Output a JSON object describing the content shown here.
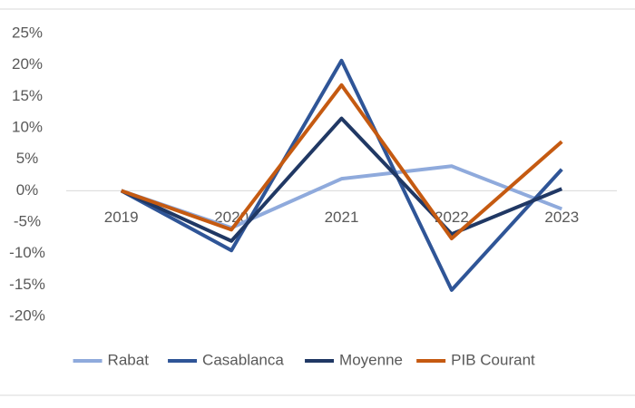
{
  "chart_data": {
    "type": "line",
    "categories": [
      "2019",
      "2020",
      "2021",
      "2022",
      "2023"
    ],
    "series": [
      {
        "name": "Rabat",
        "color": "#8faadc",
        "values": [
          0,
          -5.9,
          1.9,
          3.9,
          -2.9
        ]
      },
      {
        "name": "Casablanca",
        "color": "#2f5597",
        "values": [
          0,
          -9.5,
          20.7,
          -15.8,
          3.4
        ]
      },
      {
        "name": "Moyenne",
        "color": "#203864",
        "values": [
          0,
          -8,
          11.5,
          -6.9,
          0.3
        ]
      },
      {
        "name": "PIB Courant",
        "color": "#c55a11",
        "values": [
          0,
          -6.2,
          16.8,
          -7.6,
          7.8
        ]
      }
    ],
    "ylim": [
      -20,
      25
    ],
    "yticks": [
      {
        "value": 25,
        "label": "25%"
      },
      {
        "value": 20,
        "label": "20%"
      },
      {
        "value": 15,
        "label": "15%"
      },
      {
        "value": 10,
        "label": "10%"
      },
      {
        "value": 5,
        "label": "5%"
      },
      {
        "value": 0,
        "label": "0%"
      },
      {
        "value": -5,
        "label": "-5%"
      },
      {
        "value": -10,
        "label": "-10%"
      },
      {
        "value": -15,
        "label": "-15%"
      },
      {
        "value": -20,
        "label": "-20%"
      }
    ],
    "grid": false,
    "legend": "bottom"
  }
}
